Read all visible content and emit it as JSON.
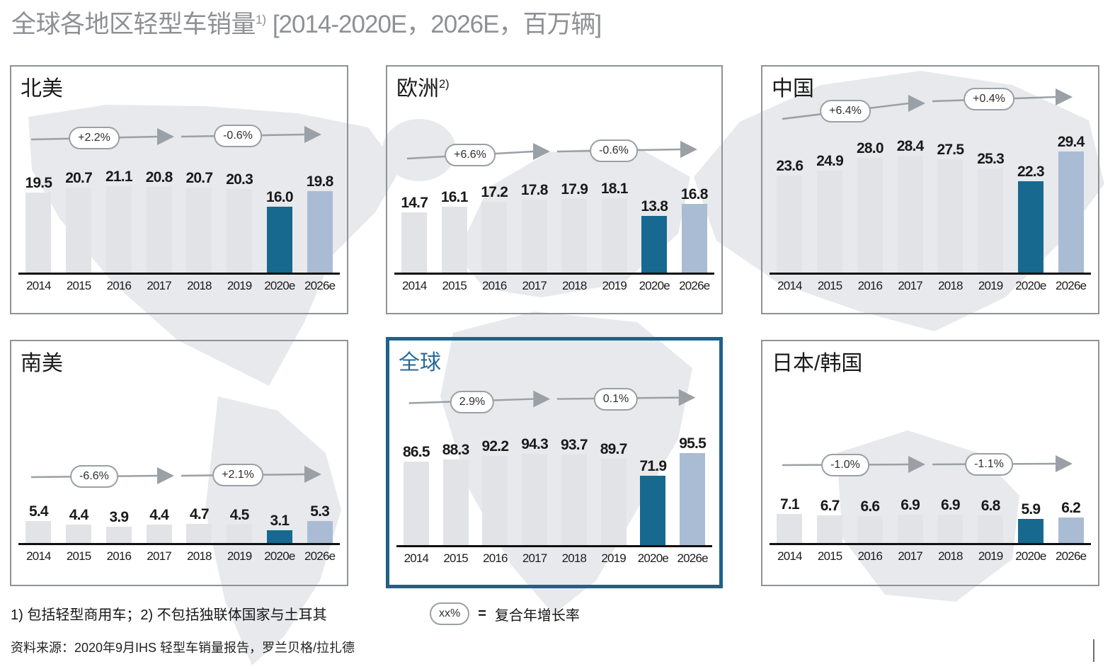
{
  "page_title": {
    "main": "全球各地区轻型车销量",
    "sup": "1)",
    "unit": "[2014-2020E，2026E，百万辆]"
  },
  "years": [
    "2014",
    "2015",
    "2016",
    "2017",
    "2018",
    "2019",
    "2020e",
    "2026e"
  ],
  "chart_data": [
    {
      "type": "bar",
      "region": "北美",
      "region_sup": "",
      "categories": [
        "2014",
        "2015",
        "2016",
        "2017",
        "2018",
        "2019",
        "2020e",
        "2026e"
      ],
      "values": [
        19.5,
        20.7,
        21.1,
        20.8,
        20.7,
        20.3,
        16.0,
        19.8
      ],
      "cagr_left": "+2.2%",
      "cagr_right": "-0.6%",
      "highlighted_panel": false
    },
    {
      "type": "bar",
      "region": "欧洲",
      "region_sup": "2)",
      "categories": [
        "2014",
        "2015",
        "2016",
        "2017",
        "2018",
        "2019",
        "2020e",
        "2026e"
      ],
      "values": [
        14.7,
        16.1,
        17.2,
        17.8,
        17.9,
        18.1,
        13.8,
        16.8
      ],
      "cagr_left": "+6.6%",
      "cagr_right": "-0.6%",
      "highlighted_panel": false
    },
    {
      "type": "bar",
      "region": "中国",
      "region_sup": "",
      "categories": [
        "2014",
        "2015",
        "2016",
        "2017",
        "2018",
        "2019",
        "2020e",
        "2026e"
      ],
      "values": [
        23.6,
        24.9,
        28.0,
        28.4,
        27.5,
        25.3,
        22.3,
        29.4
      ],
      "cagr_left": "+6.4%",
      "cagr_right": "+0.4%",
      "highlighted_panel": false
    },
    {
      "type": "bar",
      "region": "南美",
      "region_sup": "",
      "categories": [
        "2014",
        "2015",
        "2016",
        "2017",
        "2018",
        "2019",
        "2020e",
        "2026e"
      ],
      "values": [
        5.4,
        4.4,
        3.9,
        4.4,
        4.7,
        4.5,
        3.1,
        5.3
      ],
      "cagr_left": "-6.6%",
      "cagr_right": "+2.1%",
      "highlighted_panel": false
    },
    {
      "type": "bar",
      "region": "全球",
      "region_sup": "",
      "categories": [
        "2014",
        "2015",
        "2016",
        "2017",
        "2018",
        "2019",
        "2020e",
        "2026e"
      ],
      "values": [
        86.5,
        88.3,
        92.2,
        94.3,
        93.7,
        89.7,
        71.9,
        95.5
      ],
      "cagr_left": "2.9%",
      "cagr_right": "0.1%",
      "highlighted_panel": true
    },
    {
      "type": "bar",
      "region": "日本/韩国",
      "region_sup": "",
      "categories": [
        "2014",
        "2015",
        "2016",
        "2017",
        "2018",
        "2019",
        "2020e",
        "2026e"
      ],
      "values": [
        7.1,
        6.7,
        6.6,
        6.9,
        6.9,
        6.8,
        5.9,
        6.2
      ],
      "cagr_left": "-1.0%",
      "cagr_right": "-1.1%",
      "highlighted_panel": false
    }
  ],
  "footnote": "1) 包括轻型商用车；2) 不包括独联体国家与土耳其",
  "legend": {
    "pill": "xx%",
    "equals": "=",
    "label": "复合年增长率"
  },
  "source": "资料来源：2020年9月IHS 轻型车销量报告，罗兰贝格/拉扎德",
  "colors": {
    "bar_default": "#e2e3e6",
    "bar_2020e": "#17698f",
    "bar_2026e": "#a9bcd4",
    "panel_border": "#8f9296",
    "highlight_border": "#1e6289",
    "highlight_title": "#26699a",
    "arrow_gray": "#9aa0a5",
    "title_gray": "#8e9093",
    "map_gray": "#e7e9ec"
  }
}
